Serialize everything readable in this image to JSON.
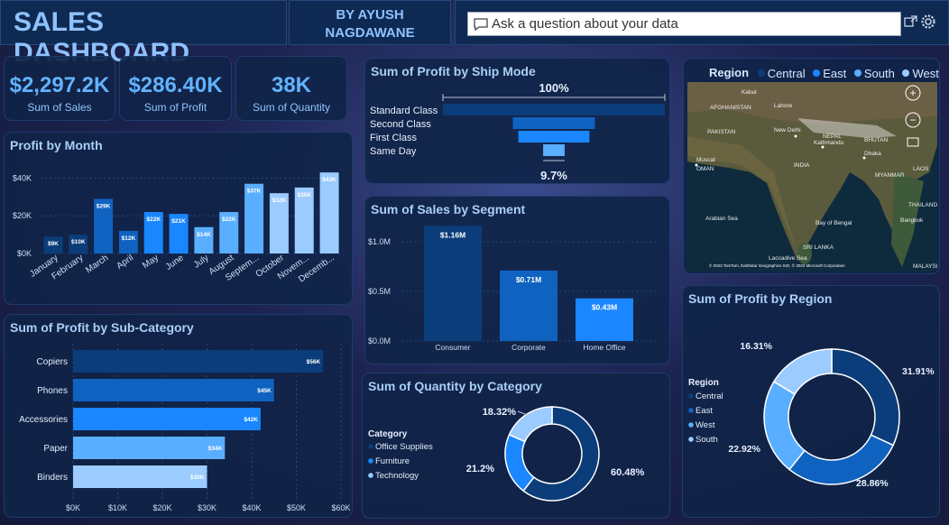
{
  "header": {
    "title": "SALES DASHBOARD",
    "author_line1": "BY AYUSH",
    "author_line2": "NAGDAWANE",
    "qa_placeholder": "Ask a question about your data"
  },
  "kpis": [
    {
      "value": "$2,297.2K",
      "label": "Sum of Sales"
    },
    {
      "value": "$286.40K",
      "label": "Sum of Profit"
    },
    {
      "value": "38K",
      "label": "Sum of Quantity"
    }
  ],
  "colors": {
    "darkest": "#0b3d7a",
    "dark": "#0f62c0",
    "medium": "#1a86ff",
    "light": "#5aaeff",
    "lightest": "#9bcbff"
  },
  "map": {
    "legend_title": "Region",
    "regions": [
      "Central",
      "East",
      "South",
      "West"
    ],
    "labels": [
      {
        "text": "Kabul"
      },
      {
        "text": "AFGHANISTAN"
      },
      {
        "text": "Lahore"
      },
      {
        "text": "PAKISTAN"
      },
      {
        "text": "New Delhi"
      },
      {
        "text": "NEPAL"
      },
      {
        "text": "Kathmandu"
      },
      {
        "text": "BHUTAN"
      },
      {
        "text": "Dhaka"
      },
      {
        "text": "Muscat"
      },
      {
        "text": "OMAN"
      },
      {
        "text": "INDIA"
      },
      {
        "text": "MYANMAR"
      },
      {
        "text": "LAOS"
      },
      {
        "text": "THAILAND"
      },
      {
        "text": "Bangkok"
      },
      {
        "text": "Arabian Sea"
      },
      {
        "text": "Bay of Bengal"
      },
      {
        "text": "SRI LANKA"
      },
      {
        "text": "Laccadive Sea"
      },
      {
        "text": "MALAYSIA"
      }
    ],
    "attribution": "© 2023 TomTom, Earthstar Geographics SIO, © 2023 Microsoft Corporation"
  },
  "chart_data": [
    {
      "type": "bar",
      "title": "Profit by Month",
      "categories": [
        "January",
        "February",
        "March",
        "April",
        "May",
        "June",
        "July",
        "August",
        "Septem...",
        "October",
        "Novem...",
        "Decemb..."
      ],
      "values": [
        9,
        10,
        29,
        12,
        22,
        21,
        14,
        22,
        37,
        32,
        35,
        43
      ],
      "data_labels": [
        "$9K",
        "$10K",
        "$29K",
        "$12K",
        "$22K",
        "$21K",
        "$14K",
        "$22K",
        "$37K",
        "$32K",
        "$35K",
        "$43K"
      ],
      "y_ticks": [
        "$0K",
        "$20K",
        "$40K"
      ],
      "ylim": [
        0,
        45
      ]
    },
    {
      "type": "funnel",
      "title": "Sum of Profit by Ship Mode",
      "categories": [
        "Standard Class",
        "Second Class",
        "First Class",
        "Same Day"
      ],
      "values": [
        100,
        37,
        32,
        9.7
      ],
      "top_label": "100%",
      "bottom_label": "9.7%"
    },
    {
      "type": "bar",
      "title": "Sum of Sales by Segment",
      "categories": [
        "Consumer",
        "Corporate",
        "Home Office"
      ],
      "values": [
        1.16,
        0.71,
        0.43
      ],
      "data_labels": [
        "$1.16M",
        "$0.71M",
        "$0.43M"
      ],
      "y_ticks": [
        "$0.0M",
        "$0.5M",
        "$1.0M"
      ],
      "ylim": [
        0,
        1.2
      ]
    },
    {
      "type": "bar",
      "orientation": "horizontal",
      "title": "Sum of Profit by Sub-Category",
      "categories": [
        "Copiers",
        "Phones",
        "Accessories",
        "Paper",
        "Binders"
      ],
      "values": [
        56,
        45,
        42,
        34,
        30
      ],
      "data_labels": [
        "$56K",
        "$45K",
        "$42K",
        "$34K",
        "$30K"
      ],
      "x_ticks": [
        "$0K",
        "$10K",
        "$20K",
        "$30K",
        "$40K",
        "$50K",
        "$60K"
      ],
      "xlim": [
        0,
        60
      ]
    },
    {
      "type": "pie",
      "title": "Sum of Quantity by Category",
      "legend_title": "Category",
      "categories": [
        "Office Supplies",
        "Furniture",
        "Technology"
      ],
      "values": [
        60.48,
        21.2,
        18.32
      ],
      "data_labels": [
        "60.48%",
        "21.2%",
        "18.32%"
      ]
    },
    {
      "type": "pie",
      "title": "Sum of Profit by Region",
      "legend_title": "Region",
      "categories": [
        "Central",
        "East",
        "West",
        "South"
      ],
      "values": [
        31.91,
        28.86,
        22.92,
        16.31
      ],
      "data_labels": [
        "31.91%",
        "28.86%",
        "22.92%",
        "16.31%"
      ]
    }
  ]
}
